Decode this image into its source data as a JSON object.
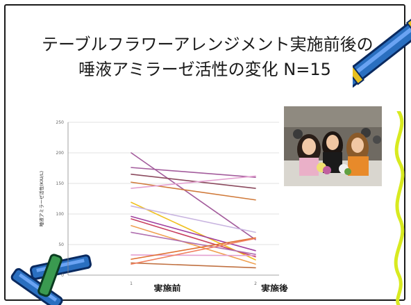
{
  "slide": {
    "title_line1": "テーブルフラワーアレンジメント実施前後の",
    "title_line2": "唾液アミラーゼ活性の変化 N=15"
  },
  "chart_data": {
    "type": "line",
    "ylabel": "唾液アミラーゼ活性(KIU/L)",
    "x": [
      "1",
      "2"
    ],
    "x_category_labels": [
      "実施前",
      "実施後"
    ],
    "ylim": [
      0,
      250
    ],
    "yticks": [
      0,
      50,
      100,
      150,
      200,
      250
    ],
    "grid": true,
    "legend": "none",
    "series": [
      {
        "values": [
          200,
          58
        ],
        "color": "#a35c9c"
      },
      {
        "values": [
          176,
          160
        ],
        "color": "#a35c9c"
      },
      {
        "values": [
          165,
          142
        ],
        "color": "#8b4a5e"
      },
      {
        "values": [
          152,
          123
        ],
        "color": "#d07a3a"
      },
      {
        "values": [
          142,
          162
        ],
        "color": "#e3a0d0"
      },
      {
        "values": [
          119,
          25
        ],
        "color": "#f0c020"
      },
      {
        "values": [
          113,
          70
        ],
        "color": "#c8b4e0"
      },
      {
        "values": [
          96,
          40
        ],
        "color": "#a040a0"
      },
      {
        "values": [
          92,
          30
        ],
        "color": "#c84060"
      },
      {
        "values": [
          81,
          18
        ],
        "color": "#f0a050"
      },
      {
        "values": [
          70,
          34
        ],
        "color": "#b070b0"
      },
      {
        "values": [
          33,
          32
        ],
        "color": "#e3a0d0"
      },
      {
        "values": [
          26,
          61
        ],
        "color": "#e07030"
      },
      {
        "values": [
          20,
          12
        ],
        "color": "#c07040"
      },
      {
        "values": [
          18,
          60
        ],
        "color": "#f08060"
      }
    ]
  },
  "photo": {
    "alt": "group-photo"
  }
}
